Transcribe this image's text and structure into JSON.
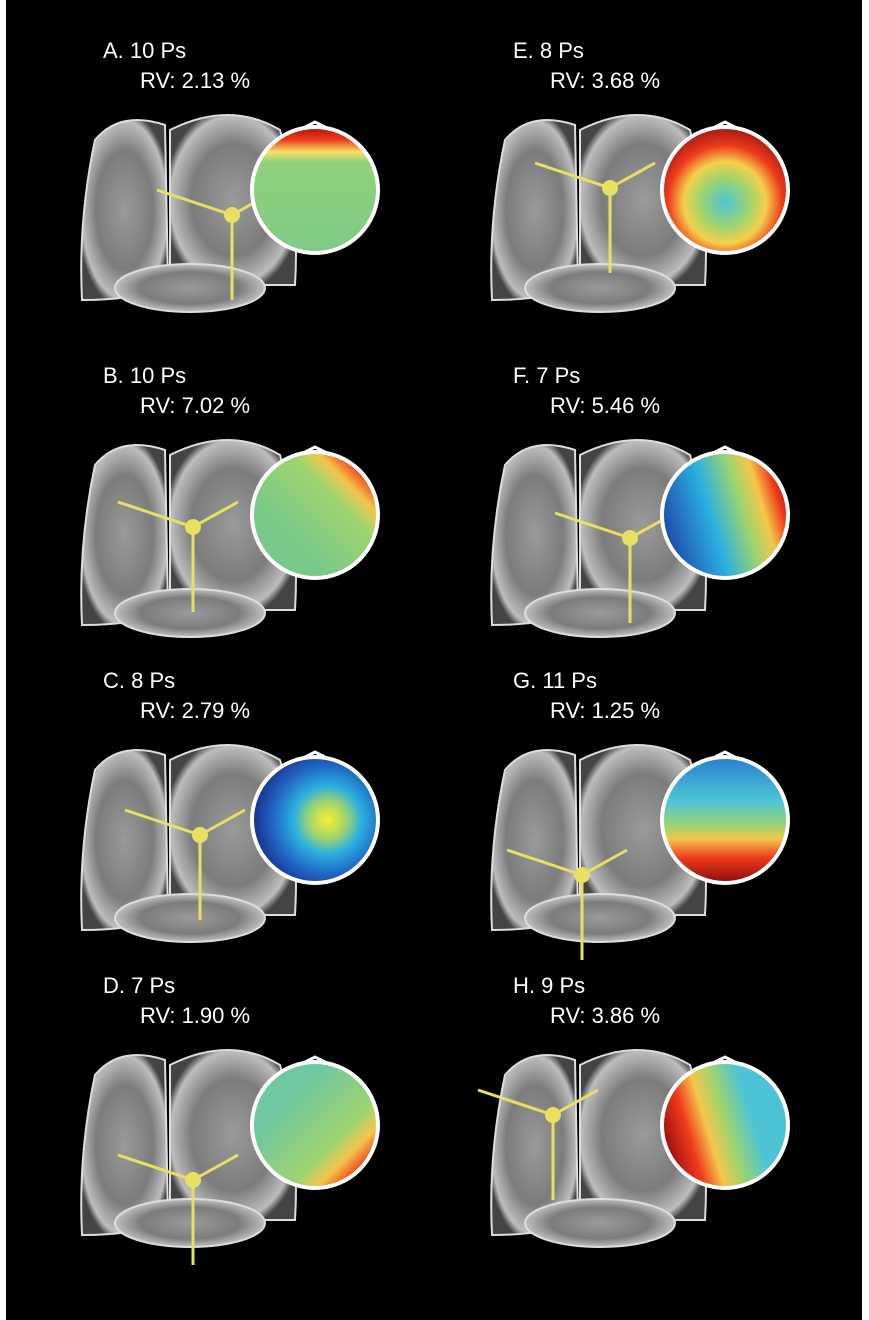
{
  "panels": [
    {
      "label": "A. 10 Ps",
      "rv": "RV: 2.13 %"
    },
    {
      "label": "B. 10 Ps",
      "rv": "RV: 7.02 %"
    },
    {
      "label": "C. 8 Ps",
      "rv": "RV: 2.79 %"
    },
    {
      "label": "D. 7 Ps",
      "rv": "RV: 1.90 %"
    },
    {
      "label": "E. 8 Ps",
      "rv": "RV: 3.68 %"
    },
    {
      "label": "F. 7 Ps",
      "rv": "RV: 5.46 %"
    },
    {
      "label": "G. 11 Ps",
      "rv": "RV: 1.25 %"
    },
    {
      "label": "H. 9 Ps",
      "rv": "RV: 3.86 %"
    }
  ]
}
